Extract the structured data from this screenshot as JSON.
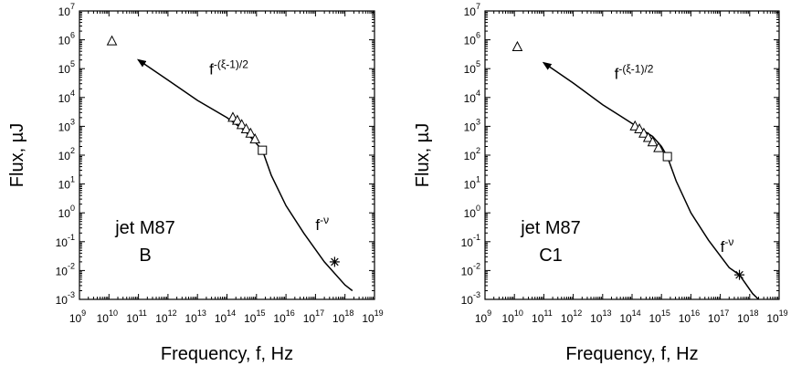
{
  "chart_data": [
    {
      "type": "scatter",
      "panel": "left",
      "xlabel": "Frequency, f, Hz",
      "ylabel": "Flux, µJ",
      "xscale": "log",
      "yscale": "log",
      "xlim_exp": [
        9,
        19
      ],
      "ylim_exp": [
        -3,
        7
      ],
      "label_lines": [
        "jet M87",
        "B"
      ],
      "curve": {
        "points": [
          [
            11.0,
            5.3
          ],
          [
            12.0,
            4.6
          ],
          [
            13.0,
            3.9
          ],
          [
            14.0,
            3.3
          ],
          [
            14.6,
            2.85
          ],
          [
            15.0,
            2.4
          ],
          [
            15.2,
            2.17
          ],
          [
            15.5,
            1.3
          ],
          [
            16.0,
            0.25
          ],
          [
            16.6,
            -0.7
          ],
          [
            17.3,
            -1.7
          ],
          [
            18.0,
            -2.5
          ],
          [
            18.25,
            -2.7
          ]
        ],
        "arrow": true
      },
      "annotations": [
        {
          "base": "f",
          "sup": "-(ξ-1)/2",
          "at": [
            13.4,
            4.8
          ]
        },
        {
          "base": "f",
          "sup": "-ν",
          "at": [
            17.0,
            -0.6
          ]
        }
      ],
      "series": [
        {
          "name": "triangles",
          "marker": "triangle",
          "points": [
            [
              10.1,
              5.95
            ],
            [
              14.2,
              3.3
            ],
            [
              14.35,
              3.2
            ],
            [
              14.5,
              3.05
            ],
            [
              14.65,
              2.9
            ],
            [
              14.8,
              2.75
            ],
            [
              14.95,
              2.55
            ]
          ]
        },
        {
          "name": "squares",
          "marker": "square",
          "points": [
            [
              15.2,
              2.17
            ]
          ]
        },
        {
          "name": "asterisks",
          "marker": "asterisk",
          "points": [
            [
              17.65,
              -1.7
            ]
          ]
        }
      ]
    },
    {
      "type": "scatter",
      "panel": "right",
      "xlabel": "Frequency, f, Hz",
      "ylabel": "Flux, µJ",
      "xscale": "log",
      "yscale": "log",
      "xlim_exp": [
        9,
        19
      ],
      "ylim_exp": [
        -3,
        7
      ],
      "label_lines": [
        "jet M87",
        "C1"
      ],
      "curve": {
        "points": [
          [
            11.0,
            5.2
          ],
          [
            12.0,
            4.5
          ],
          [
            13.0,
            3.75
          ],
          [
            14.0,
            3.1
          ],
          [
            14.7,
            2.65
          ],
          [
            15.0,
            2.3
          ],
          [
            15.2,
            1.95
          ],
          [
            15.5,
            1.1
          ],
          [
            16.0,
            0.0
          ],
          [
            16.6,
            -0.95
          ],
          [
            17.3,
            -1.9
          ],
          [
            17.65,
            -2.15
          ],
          [
            18.1,
            -2.8
          ],
          [
            18.3,
            -3.0
          ]
        ],
        "arrow": true
      },
      "annotations": [
        {
          "base": "f",
          "sup": "-(ξ-1)/2",
          "at": [
            13.4,
            4.65
          ]
        },
        {
          "base": "f",
          "sup": "-ν",
          "at": [
            17.0,
            -1.35
          ]
        }
      ],
      "series": [
        {
          "name": "triangles",
          "marker": "triangle",
          "points": [
            [
              10.1,
              5.75
            ],
            [
              14.1,
              3.0
            ],
            [
              14.25,
              2.9
            ],
            [
              14.4,
              2.75
            ],
            [
              14.55,
              2.6
            ],
            [
              14.7,
              2.45
            ],
            [
              14.9,
              2.25
            ]
          ]
        },
        {
          "name": "squares",
          "marker": "square",
          "points": [
            [
              15.2,
              1.95
            ]
          ]
        },
        {
          "name": "asterisks",
          "marker": "asterisk",
          "points": [
            [
              17.65,
              -2.15
            ]
          ]
        }
      ]
    }
  ]
}
